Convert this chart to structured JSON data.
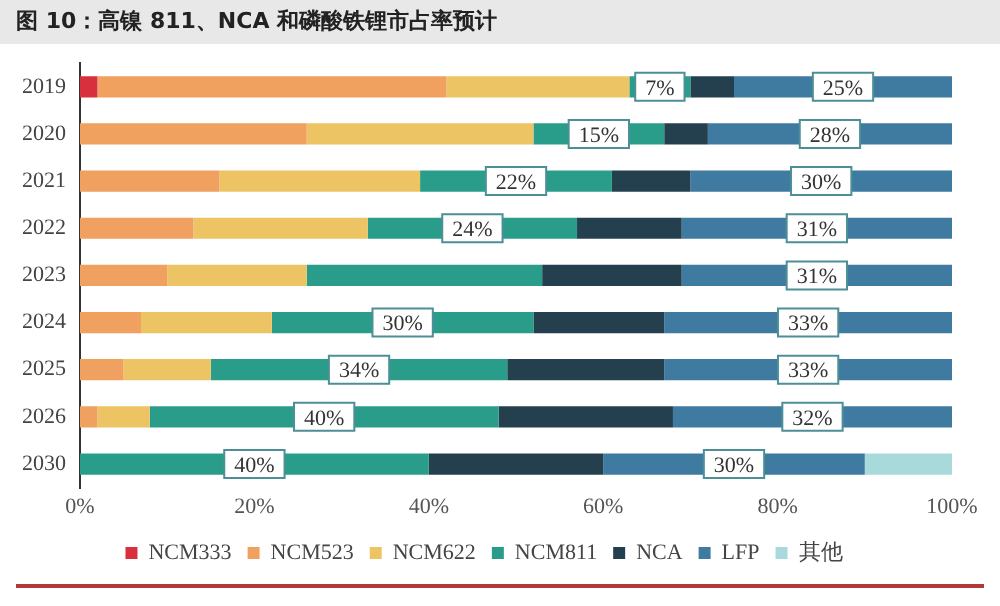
{
  "chart_data": {
    "type": "bar",
    "title": "图 10：高镍 811、NCA 和磷酸铁锂市占率预计",
    "orientation": "horizontal",
    "stacked": true,
    "categories": [
      "2019",
      "2020",
      "2021",
      "2022",
      "2023",
      "2024",
      "2025",
      "2026",
      "2030"
    ],
    "series": [
      {
        "name": "NCM333",
        "color": "#d9303e",
        "values": [
          2,
          0,
          0,
          0,
          0,
          0,
          0,
          0,
          0
        ]
      },
      {
        "name": "NCM523",
        "color": "#f0a160",
        "values": [
          40,
          26,
          16,
          13,
          10,
          7,
          5,
          2,
          0
        ]
      },
      {
        "name": "NCM622",
        "color": "#ecc463",
        "values": [
          21,
          26,
          23,
          20,
          16,
          15,
          10,
          6,
          0
        ]
      },
      {
        "name": "NCM811",
        "color": "#2a9d8a",
        "values": [
          7,
          15,
          22,
          24,
          27,
          30,
          34,
          40,
          40
        ],
        "value_labels": [
          "7%",
          "15%",
          "22%",
          "24%",
          null,
          "30%",
          "34%",
          "40%",
          "40%"
        ]
      },
      {
        "name": "NCA",
        "color": "#24404f",
        "values": [
          5,
          5,
          9,
          12,
          16,
          15,
          18,
          20,
          20
        ]
      },
      {
        "name": "LFP",
        "color": "#3f7aa0",
        "values": [
          25,
          28,
          30,
          31,
          31,
          33,
          33,
          32,
          30
        ],
        "value_labels": [
          "25%",
          "28%",
          "30%",
          "31%",
          "31%",
          "33%",
          "33%",
          "32%",
          "30%"
        ]
      },
      {
        "name": "其他",
        "color": "#a8dadc",
        "values": [
          0,
          0,
          0,
          0,
          0,
          0,
          0,
          0,
          10
        ]
      }
    ],
    "xlim": [
      0,
      100
    ],
    "xticks": [
      {
        "value": 0,
        "label": "0%"
      },
      {
        "value": 20,
        "label": "20%"
      },
      {
        "value": 40,
        "label": "40%"
      },
      {
        "value": 60,
        "label": "60%"
      },
      {
        "value": 80,
        "label": "80%"
      },
      {
        "value": 100,
        "label": "100%"
      }
    ],
    "grid": false,
    "legend": "bottom"
  }
}
